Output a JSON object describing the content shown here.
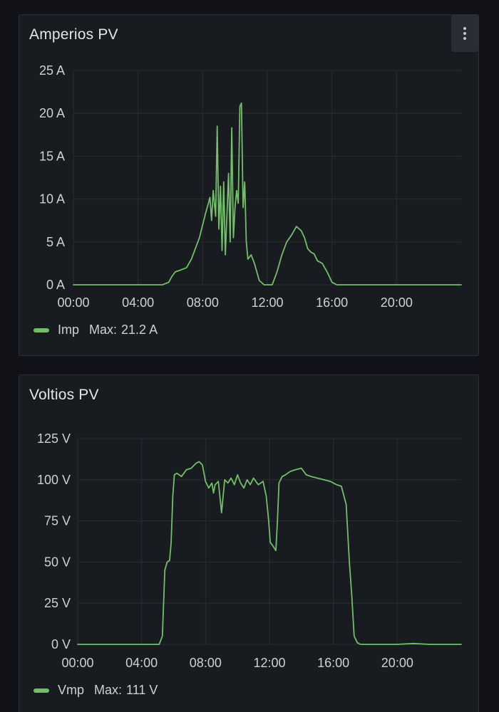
{
  "panels": [
    {
      "title": "Amperios PV",
      "menu_icon": "vertical-dots-icon",
      "legend": {
        "name": "Imp",
        "max_label": "Max:",
        "max_value": "21.2 A"
      }
    },
    {
      "title": "Voltios PV",
      "legend": {
        "name": "Vmp",
        "max_label": "Max:",
        "max_value": "111 V"
      }
    }
  ],
  "colors": {
    "series": "#73bf69",
    "grid": "#2a2d33",
    "panel_bg": "#181b1f",
    "page_bg": "#111217"
  },
  "chart_data": [
    {
      "type": "line",
      "unit": "A",
      "ylim": [
        0,
        25
      ],
      "yticks": [
        0,
        5,
        10,
        15,
        20,
        25
      ],
      "ytick_labels": [
        "0 A",
        "5 A",
        "10 A",
        "15 A",
        "20 A",
        "25 A"
      ],
      "xlim": [
        0,
        24
      ],
      "xticks": [
        0,
        4,
        8,
        12,
        16,
        20
      ],
      "xtick_labels": [
        "00:00",
        "04:00",
        "08:00",
        "12:00",
        "16:00",
        "20:00"
      ],
      "grid": true,
      "legend_position": "bottom-left",
      "series": [
        {
          "name": "Imp",
          "color": "#73bf69",
          "x": [
            0,
            5.5,
            5.9,
            6.1,
            6.3,
            6.6,
            7.0,
            7.3,
            7.6,
            7.8,
            8.0,
            8.2,
            8.35,
            8.45,
            8.55,
            8.65,
            8.8,
            8.9,
            9.0,
            9.1,
            9.2,
            9.3,
            9.4,
            9.5,
            9.6,
            9.7,
            9.8,
            9.9,
            10.0,
            10.1,
            10.2,
            10.3,
            10.4,
            10.5,
            10.6,
            10.7,
            10.8,
            11.0,
            11.2,
            11.5,
            11.8,
            12.0,
            12.3,
            12.6,
            12.9,
            13.2,
            13.5,
            13.8,
            14.1,
            14.3,
            14.5,
            14.7,
            14.9,
            15.1,
            15.4,
            15.7,
            16.0,
            16.3,
            16.6,
            16.9,
            17.2,
            18.0,
            24.0
          ],
          "values": [
            0,
            0,
            0.3,
            1.0,
            1.5,
            1.7,
            2.0,
            3.0,
            4.5,
            5.5,
            7.0,
            8.5,
            9.5,
            10.2,
            7.5,
            11.0,
            8.0,
            18.5,
            6.5,
            11.5,
            4.0,
            12.0,
            3.5,
            8.0,
            13.0,
            5.0,
            18.3,
            5.5,
            9.0,
            11.0,
            9.5,
            20.8,
            21.2,
            9.0,
            12.0,
            5.0,
            3.0,
            3.5,
            2.5,
            0.5,
            0.0,
            0.0,
            0.0,
            1.5,
            3.5,
            5.0,
            5.8,
            6.8,
            6.3,
            5.5,
            4.2,
            3.8,
            3.6,
            2.8,
            2.5,
            1.5,
            0.3,
            0.0,
            0.0,
            0.0,
            0.0,
            0.0,
            0.0
          ]
        }
      ]
    },
    {
      "type": "line",
      "unit": "V",
      "ylim": [
        0,
        125
      ],
      "yticks": [
        0,
        25,
        50,
        75,
        100,
        125
      ],
      "ytick_labels": [
        "0 V",
        "25 V",
        "50 V",
        "75 V",
        "100 V",
        "125 V"
      ],
      "xlim": [
        0,
        24
      ],
      "xticks": [
        0,
        4,
        8,
        12,
        16,
        20
      ],
      "xtick_labels": [
        "00:00",
        "04:00",
        "08:00",
        "12:00",
        "16:00",
        "20:00"
      ],
      "grid": true,
      "legend_position": "bottom-left",
      "series": [
        {
          "name": "Vmp",
          "color": "#73bf69",
          "x": [
            0,
            5.1,
            5.3,
            5.45,
            5.6,
            5.75,
            5.85,
            5.95,
            6.05,
            6.2,
            6.5,
            6.8,
            7.1,
            7.4,
            7.6,
            7.8,
            8.0,
            8.2,
            8.4,
            8.5,
            8.6,
            8.8,
            9.0,
            9.2,
            9.4,
            9.6,
            9.8,
            10.0,
            10.2,
            10.4,
            10.6,
            10.8,
            11.0,
            11.3,
            11.6,
            11.8,
            11.95,
            12.05,
            12.2,
            12.4,
            12.5,
            12.6,
            12.8,
            13.0,
            13.3,
            13.6,
            14.0,
            14.3,
            14.6,
            15.0,
            15.4,
            15.8,
            16.2,
            16.5,
            16.8,
            17.0,
            17.15,
            17.3,
            17.5,
            17.7,
            18.0,
            20.0,
            21.0,
            22.0,
            24.0
          ],
          "values": [
            0,
            0,
            5,
            45,
            50,
            51,
            62,
            90,
            103,
            104,
            102,
            106,
            107,
            110,
            111,
            109,
            99,
            95,
            98,
            92,
            97,
            99,
            80,
            100,
            98,
            101,
            97,
            103,
            98,
            95,
            100,
            97,
            101,
            97,
            99,
            90,
            75,
            62,
            60,
            57,
            75,
            98,
            102,
            103,
            105,
            106,
            107,
            103,
            102,
            101,
            100,
            99,
            97,
            96,
            85,
            50,
            30,
            5,
            1,
            0,
            0,
            0,
            0.5,
            0,
            0
          ]
        }
      ]
    }
  ]
}
